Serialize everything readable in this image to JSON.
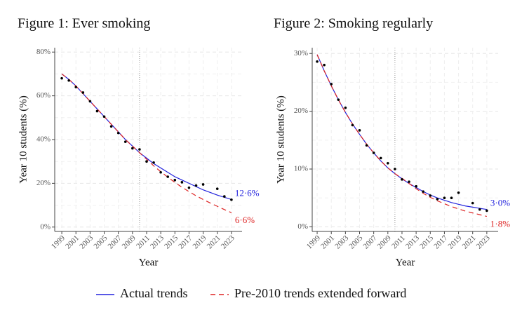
{
  "chart_data": [
    {
      "type": "line",
      "title": "Figure 1: Ever smoking",
      "xlabel": "Year",
      "ylabel": "Year 10 students (%)",
      "x": [
        1999,
        2000,
        2001,
        2002,
        2003,
        2004,
        2005,
        2006,
        2007,
        2008,
        2009,
        2010,
        2011,
        2012,
        2013,
        2014,
        2015,
        2016,
        2017,
        2018,
        2019,
        2020,
        2021,
        2022,
        2023
      ],
      "observed": [
        68,
        67,
        64,
        61.5,
        57.5,
        53,
        50.5,
        46,
        43,
        39,
        36,
        35.5,
        30,
        29.5,
        25,
        23,
        21.5,
        20.5,
        18,
        19,
        19.5,
        null,
        17.5,
        14,
        12.5
      ],
      "series": [
        {
          "name": "Actual trends",
          "color": "#2222dd",
          "dash": false,
          "end_label": "12·6%",
          "values": [
            70,
            67.5,
            64.5,
            61,
            57.5,
            54,
            50.5,
            47,
            43.5,
            40,
            37,
            34,
            31.5,
            29,
            27,
            25,
            23,
            21.5,
            20,
            18.5,
            17,
            15.8,
            14.6,
            13.6,
            12.6
          ]
        },
        {
          "name": "Pre-2010 trends extended forward",
          "color": "#dd2222",
          "dash": true,
          "end_label": "6·6%",
          "values": [
            70,
            67.5,
            64.5,
            61,
            57.5,
            54,
            50.5,
            47,
            43.5,
            40,
            37,
            34,
            31,
            28,
            25.3,
            22.8,
            20.4,
            18.2,
            16.2,
            14.3,
            12.6,
            11,
            9.5,
            8,
            6.6
          ]
        }
      ],
      "xlim": [
        1998,
        2024.5
      ],
      "xticks": [
        1999,
        2001,
        2003,
        2005,
        2007,
        2009,
        2011,
        2013,
        2015,
        2017,
        2019,
        2021,
        2023
      ],
      "ylim": [
        -2,
        82
      ],
      "yticks": [
        {
          "value": 0,
          "label": "0%"
        },
        {
          "value": 20,
          "label": "20%"
        },
        {
          "value": 40,
          "label": "40%"
        },
        {
          "value": 60,
          "label": "60%"
        },
        {
          "value": 80,
          "label": "80%"
        }
      ],
      "vline": 2010,
      "grid": true
    },
    {
      "type": "line",
      "title": "Figure 2: Smoking regularly",
      "xlabel": "Year",
      "ylabel": "Year 10 students (%)",
      "x": [
        1999,
        2000,
        2001,
        2002,
        2003,
        2004,
        2005,
        2006,
        2007,
        2008,
        2009,
        2010,
        2011,
        2012,
        2013,
        2014,
        2015,
        2016,
        2017,
        2018,
        2019,
        2020,
        2021,
        2022,
        2023
      ],
      "observed": [
        28.6,
        28,
        24.7,
        22,
        20.6,
        17.6,
        16.7,
        14.1,
        12.8,
        11.9,
        11,
        10,
        8.2,
        7.8,
        7,
        6.1,
        5.4,
        4.8,
        5,
        5,
        5.9,
        null,
        4.1,
        3,
        2.8
      ],
      "series": [
        {
          "color": "#2222dd",
          "dash": false,
          "end_label": "3·0%",
          "values": [
            29.8,
            27,
            24.4,
            22,
            19.8,
            17.8,
            16,
            14.3,
            12.8,
            11.4,
            10.2,
            9.2,
            8.3,
            7.5,
            6.8,
            6.1,
            5.5,
            5,
            4.6,
            4.2,
            3.9,
            3.6,
            3.4,
            3.2,
            3
          ]
        },
        {
          "color": "#dd2222",
          "dash": true,
          "end_label": "1·8%",
          "values": [
            29.8,
            27,
            24.4,
            22,
            19.8,
            17.8,
            16,
            14.3,
            12.8,
            11.4,
            10.2,
            9.2,
            8.4,
            7.5,
            6.6,
            5.8,
            5.1,
            4.5,
            4,
            3.5,
            3.1,
            2.7,
            2.4,
            2.1,
            1.8
          ]
        }
      ],
      "xlim": [
        1998.3,
        2024.6
      ],
      "xticks": [
        1999,
        2001,
        2003,
        2005,
        2007,
        2009,
        2011,
        2013,
        2015,
        2017,
        2019,
        2021,
        2023
      ],
      "ylim": [
        -0.8,
        31
      ],
      "yticks": [
        {
          "value": 0,
          "label": "0%"
        },
        {
          "value": 10,
          "label": "10%"
        },
        {
          "value": 20,
          "label": "20%"
        },
        {
          "value": 30,
          "label": "30%"
        }
      ],
      "vline": 2010,
      "grid": true
    }
  ]
}
